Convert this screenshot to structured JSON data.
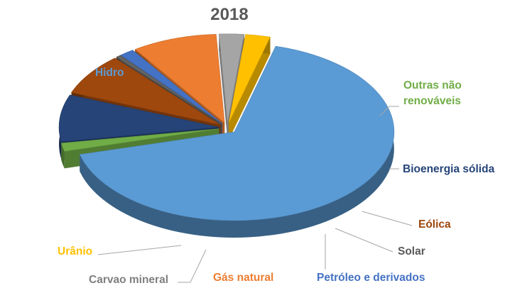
{
  "chart_data": {
    "type": "pie",
    "title": "2018",
    "style": "3d-exploded",
    "slices": [
      {
        "label": "Hidro",
        "value": 66.6,
        "color": "#5B9BD5"
      },
      {
        "label": "Outras não renováveis",
        "value": 1.5,
        "color": "#70AD47"
      },
      {
        "label": "Bioenergia sólida",
        "value": 8.5,
        "color": "#264478"
      },
      {
        "label": "Eólica",
        "value": 7.6,
        "color": "#9E480E"
      },
      {
        "label": "Solar",
        "value": 0.5,
        "color": "#636363"
      },
      {
        "label": "Petróleo e derivados",
        "value": 1.5,
        "color": "#4472C4"
      },
      {
        "label": "Gás natural",
        "value": 8.6,
        "color": "#ED7D31"
      },
      {
        "label": "Carvao mineral",
        "value": 2.5,
        "color": "#A5A5A5"
      },
      {
        "label": "Urânio",
        "value": 2.5,
        "color": "#FFC000"
      }
    ]
  }
}
